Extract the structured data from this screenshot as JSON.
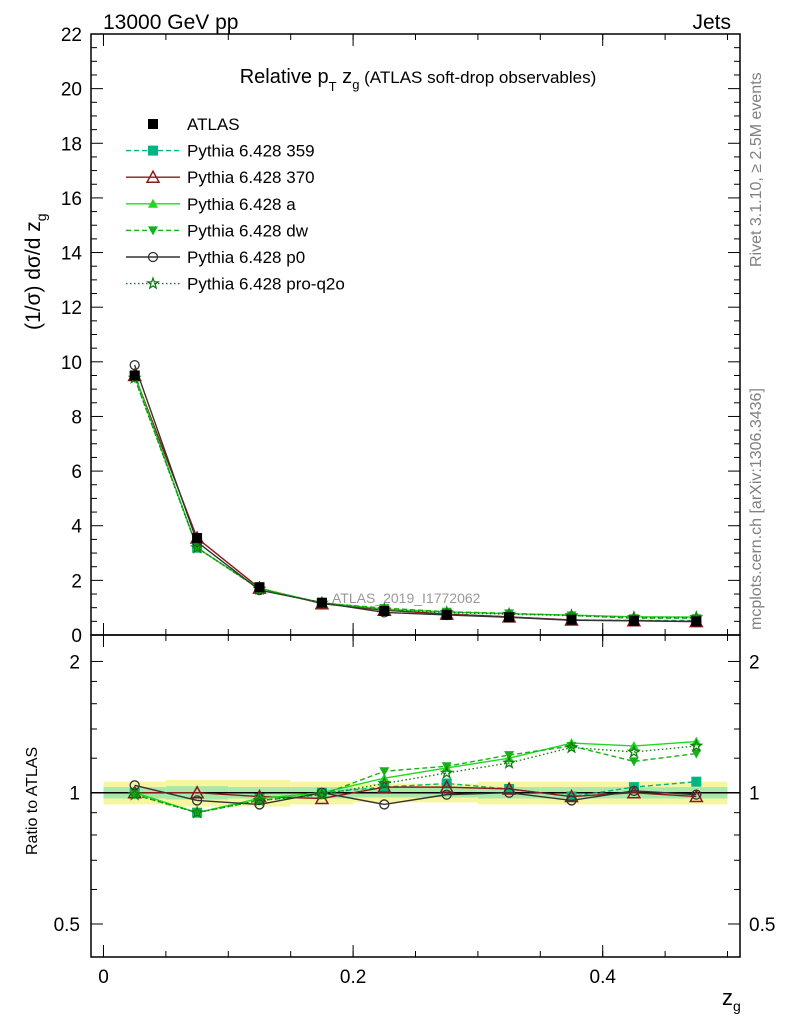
{
  "header": {
    "left": "13000 GeV pp",
    "right": "Jets"
  },
  "side_text": {
    "rivet": "Rivet 3.1.10, ≥ 2.5M events",
    "mcplots": "mcplots.cern.ch [arXiv:1306.3436]"
  },
  "chart_data": {
    "type": "line",
    "title": {
      "prefix": "Relative p",
      "sub1": "T",
      "mid": " z",
      "sub2": "g",
      "suffix": " (ATLAS soft-drop observables)"
    },
    "watermark": "ATLAS_2019_I1772062",
    "xlabel": "z",
    "xlabel_sub": "g",
    "ylabel": "(1/σ) dσ/d z",
    "ylabel_sub": "g",
    "ratio_ylabel": "Ratio to ATLAS",
    "xlim": [
      -0.01,
      0.51
    ],
    "ylim": [
      0,
      22
    ],
    "ratio_ylim": [
      0.42,
      2.3
    ],
    "ratio_scale": "log",
    "x_ticks": [
      0,
      0.2,
      0.4
    ],
    "x_tick_labels": [
      "0",
      "0.2",
      "0.4"
    ],
    "y_ticks": [
      0,
      2,
      4,
      6,
      8,
      10,
      12,
      14,
      16,
      18,
      20,
      22
    ],
    "y_tick_labels": [
      "0",
      "2",
      "4",
      "6",
      "8",
      "10",
      "12",
      "14",
      "16",
      "18",
      "20",
      "22"
    ],
    "ratio_ticks": [
      0.5,
      1,
      2
    ],
    "ratio_tick_labels": [
      "0.5",
      "1",
      "2"
    ],
    "legend_position": "top-left",
    "x": [
      0.025,
      0.075,
      0.125,
      0.175,
      0.225,
      0.275,
      0.325,
      0.375,
      0.425,
      0.475
    ],
    "data": {
      "name": "ATLAS",
      "values": [
        9.5,
        3.55,
        1.75,
        1.18,
        0.88,
        0.74,
        0.65,
        0.56,
        0.52,
        0.5
      ]
    },
    "uncertainty_band": {
      "outer": [
        0.06,
        0.07,
        0.07,
        0.06,
        0.05,
        0.05,
        0.06,
        0.06,
        0.06,
        0.06
      ],
      "inner": [
        0.03,
        0.035,
        0.03,
        0.03,
        0.025,
        0.025,
        0.03,
        0.03,
        0.03,
        0.03
      ]
    },
    "series": [
      {
        "name": "Pythia 6.428 359",
        "color": "#00b483",
        "dash": "5,3",
        "marker": "square",
        "ratio": [
          1.0,
          0.9,
          0.97,
          1.0,
          1.03,
          1.05,
          1.02,
          0.98,
          1.03,
          1.06
        ]
      },
      {
        "name": "Pythia 6.428 370",
        "color": "#8b1a1a",
        "dash": "",
        "marker": "triangle-open",
        "ratio": [
          1.0,
          1.0,
          0.98,
          0.97,
          1.03,
          1.03,
          1.02,
          0.98,
          1.0,
          0.98
        ]
      },
      {
        "name": "Pythia 6.428 a",
        "color": "#20d820",
        "dash": "",
        "marker": "triangle",
        "ratio": [
          1.0,
          0.9,
          0.97,
          1.0,
          1.08,
          1.14,
          1.2,
          1.3,
          1.28,
          1.31
        ]
      },
      {
        "name": "Pythia 6.428 dw",
        "color": "#18b018",
        "dash": "5,3",
        "marker": "triangle-down",
        "ratio": [
          0.99,
          0.9,
          0.96,
          0.99,
          1.12,
          1.15,
          1.22,
          1.28,
          1.18,
          1.23
        ]
      },
      {
        "name": "Pythia 6.428 p0",
        "color": "#333333",
        "dash": "",
        "marker": "circle-open",
        "ratio": [
          1.04,
          0.96,
          0.94,
          1.0,
          0.94,
          0.99,
          1.0,
          0.96,
          1.01,
          0.99
        ]
      },
      {
        "name": "Pythia 6.428 pro-q2o",
        "color": "#108010",
        "dash": "1.5,2.5",
        "marker": "star",
        "ratio": [
          0.99,
          0.9,
          0.96,
          0.99,
          1.05,
          1.11,
          1.17,
          1.27,
          1.24,
          1.28
        ]
      }
    ]
  }
}
